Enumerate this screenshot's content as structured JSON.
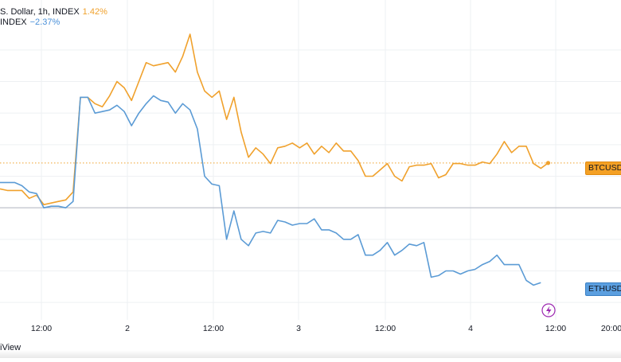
{
  "legend": {
    "btc_label": "S. Dollar, 1h, INDEX",
    "btc_pct": "1.42%",
    "eth_label": "INDEX",
    "eth_pct": "−2.37%"
  },
  "badges": {
    "btc": "BTCUSD",
    "eth": "ETHUSD"
  },
  "footer": "iView",
  "colors": {
    "btc": "#f0a12c",
    "eth": "#5b9bd5",
    "zero_line": "#b2b5be",
    "grid": "#eef0f3"
  },
  "chart_data": {
    "type": "line",
    "x_tick_labels": [
      "12:00",
      "2",
      "12:00",
      "3",
      "12:00",
      "4",
      "12:00",
      "20:00"
    ],
    "ylim": [
      -3.5,
      5.5
    ],
    "grid": true,
    "series": [
      {
        "name": "BTCUSD",
        "last_value": 1.42,
        "values": [
          0.6,
          0.55,
          0.55,
          0.55,
          0.3,
          0.4,
          0.1,
          0.15,
          0.2,
          0.25,
          0.5,
          3.5,
          3.5,
          3.3,
          3.2,
          3.55,
          4.0,
          3.8,
          3.4,
          4.0,
          4.6,
          4.5,
          4.55,
          4.6,
          4.3,
          4.8,
          5.5,
          4.3,
          3.7,
          3.5,
          3.7,
          2.8,
          3.5,
          2.4,
          1.6,
          1.9,
          1.7,
          1.4,
          1.9,
          1.95,
          2.05,
          1.9,
          2.05,
          1.7,
          1.95,
          1.75,
          2.05,
          1.8,
          1.8,
          1.5,
          1.0,
          1.0,
          1.2,
          1.4,
          1.0,
          0.85,
          1.3,
          1.35,
          1.35,
          1.4,
          0.95,
          1.05,
          1.4,
          1.4,
          1.35,
          1.35,
          1.45,
          1.4,
          1.7,
          2.1,
          1.75,
          1.95,
          1.95,
          1.4,
          1.25,
          1.42
        ]
      },
      {
        "name": "ETHUSD",
        "last_value": -2.37,
        "values": [
          0.8,
          0.8,
          0.8,
          0.7,
          0.5,
          0.45,
          0.0,
          0.05,
          0.05,
          0.0,
          0.2,
          3.5,
          3.5,
          3.0,
          3.05,
          3.1,
          3.25,
          3.05,
          2.6,
          3.0,
          3.3,
          3.55,
          3.4,
          3.35,
          3.0,
          3.3,
          3.1,
          2.5,
          1.0,
          0.75,
          0.7,
          -1.0,
          -0.1,
          -1.0,
          -1.2,
          -0.8,
          -0.75,
          -0.8,
          -0.4,
          -0.45,
          -0.55,
          -0.5,
          -0.5,
          -0.35,
          -0.7,
          -0.7,
          -0.8,
          -1.0,
          -1.0,
          -0.85,
          -1.5,
          -1.5,
          -1.35,
          -1.1,
          -1.5,
          -1.35,
          -1.15,
          -1.2,
          -1.1,
          -2.2,
          -2.15,
          -2.0,
          -2.0,
          -2.1,
          -2.0,
          -1.95,
          -1.8,
          -1.7,
          -1.5,
          -1.8,
          -1.8,
          -1.8,
          -2.3,
          -2.45,
          -2.37
        ]
      }
    ]
  }
}
